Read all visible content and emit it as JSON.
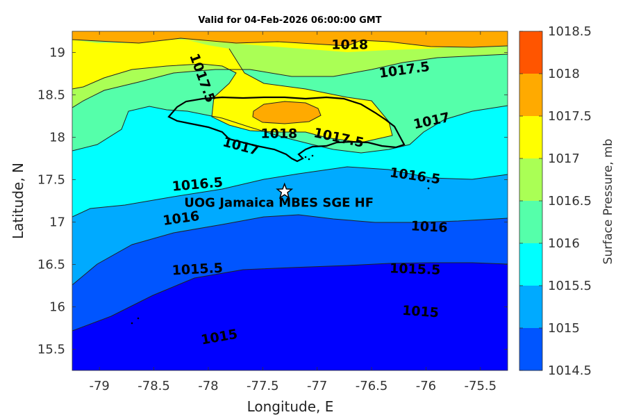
{
  "title": "Valid for 04-Feb-2026 06:00:00 GMT",
  "axes": {
    "xlabel": "Longitude, E",
    "ylabel": "Latitude, N",
    "xlim": [
      -79.25,
      -75.25
    ],
    "ylim": [
      15.25,
      19.25
    ],
    "xticks": [
      "-79",
      "-78.5",
      "-78",
      "-77.5",
      "-77",
      "-76.5",
      "-76",
      "-75.5"
    ],
    "yticks": [
      "19",
      "18.5",
      "18",
      "17.5",
      "17",
      "16.5",
      "16",
      "15.5"
    ]
  },
  "colorbar": {
    "label": "Surface Pressure, mb",
    "levels": [
      "1018.5",
      "1018",
      "1017.5",
      "1017",
      "1016.5",
      "1016",
      "1015.5",
      "1015",
      "1014.5"
    ],
    "colors": [
      "#FF5500",
      "#FFAA00",
      "#FFFF00",
      "#AAFF55",
      "#55FFAA",
      "#00FFFF",
      "#00AAFF",
      "#0055FF",
      "#0000FF"
    ]
  },
  "contour_labels": [
    {
      "text": "1018",
      "lon": -76.7,
      "lat": 19.1
    },
    {
      "text": "1017.5",
      "lon": -78.05,
      "lat": 18.7
    },
    {
      "text": "1018",
      "lon": -77.35,
      "lat": 18.05
    },
    {
      "text": "1017.5",
      "lon": -76.2,
      "lat": 18.8
    },
    {
      "text": "1017",
      "lon": -75.95,
      "lat": 18.2
    },
    {
      "text": "1017.5",
      "lon": -76.8,
      "lat": 18
    },
    {
      "text": "1017",
      "lon": -77.7,
      "lat": 17.9
    },
    {
      "text": "1016.5",
      "lon": -76.1,
      "lat": 17.55
    },
    {
      "text": "1016.5",
      "lon": -78.1,
      "lat": 17.45
    },
    {
      "text": "1016",
      "lon": -78.25,
      "lat": 17.05
    },
    {
      "text": "1016",
      "lon": -75.97,
      "lat": 16.95
    },
    {
      "text": "1015.5",
      "lon": -78.1,
      "lat": 16.45
    },
    {
      "text": "1015.5",
      "lon": -76.1,
      "lat": 16.45
    },
    {
      "text": "1015",
      "lon": -76.05,
      "lat": 15.95
    },
    {
      "text": "1015",
      "lon": -77.9,
      "lat": 15.65
    }
  ],
  "station": {
    "label": "UOG Jamaica MBES SGE HF",
    "lon": -77.3,
    "lat": 17.36
  }
}
